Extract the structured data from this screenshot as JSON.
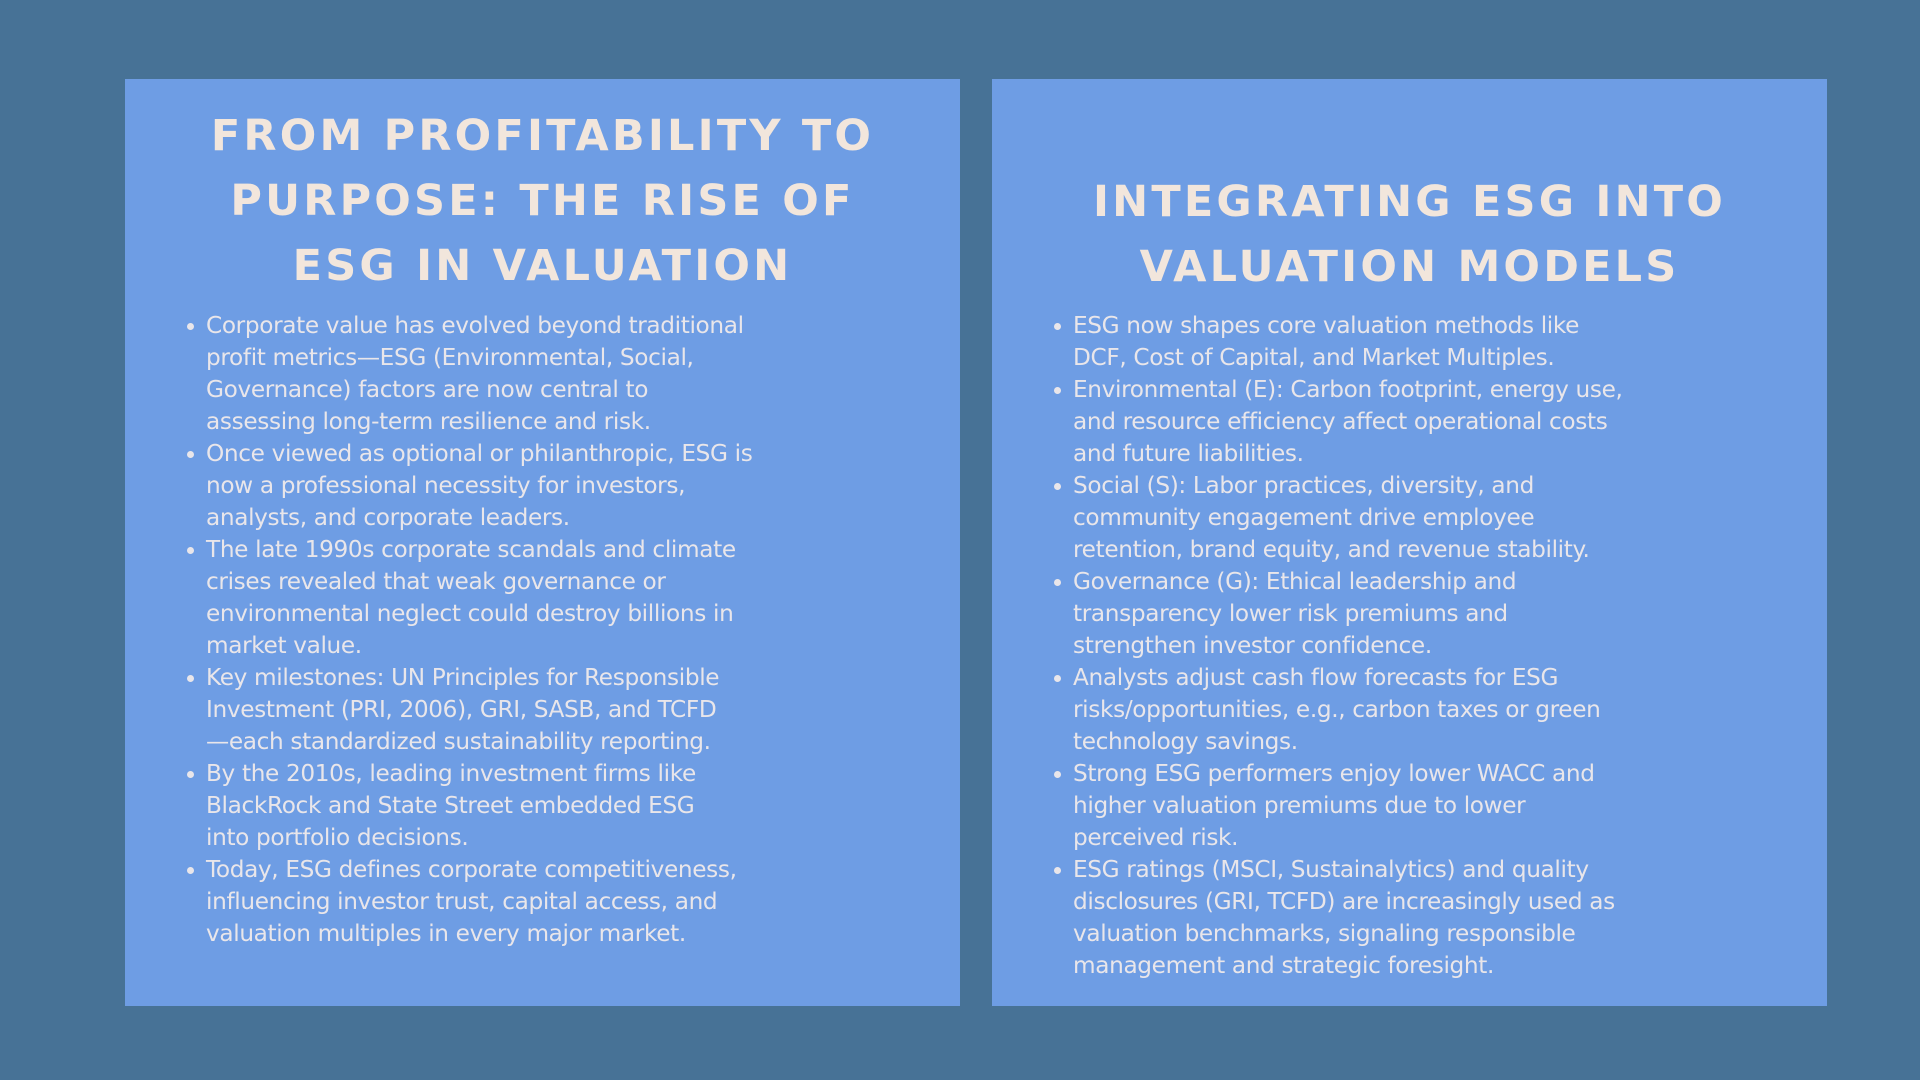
{
  "colors": {
    "background": "#477296",
    "panel": "#6E9DE4",
    "title_text": "#F2E6DC",
    "body_text": "#E9E6EA"
  },
  "left_panel": {
    "title_lines": [
      "FROM PROFITABILITY TO",
      "PURPOSE: THE RISE OF",
      "ESG IN VALUATION"
    ],
    "items": [
      {
        "lines": [
          "Corporate value has evolved beyond traditional",
          "profit metrics—ESG (Environmental, Social,",
          "Governance) factors are now central to",
          "assessing long-term resilience and risk."
        ]
      },
      {
        "lines": [
          "Once viewed as optional or philanthropic, ESG is",
          "now a professional necessity for investors,",
          "analysts, and corporate leaders."
        ]
      },
      {
        "lines": [
          "The late 1990s corporate scandals and climate",
          "crises revealed that weak governance or",
          "environmental neglect could destroy billions in",
          "market value."
        ]
      },
      {
        "lines": [
          "Key milestones: UN Principles for Responsible",
          "Investment (PRI, 2006), GRI, SASB, and TCFD",
          "—each standardized sustainability reporting."
        ]
      },
      {
        "lines": [
          "By the 2010s, leading investment firms like",
          "BlackRock and State Street embedded ESG",
          "into portfolio decisions."
        ]
      },
      {
        "lines": [
          "Today, ESG defines corporate competitiveness,",
          "influencing investor trust, capital access, and",
          "valuation multiples in every major market."
        ]
      }
    ]
  },
  "right_panel": {
    "title_lines": [
      "INTEGRATING ESG INTO",
      "VALUATION MODELS"
    ],
    "items": [
      {
        "lines": [
          "ESG now shapes core valuation methods like",
          "DCF, Cost of Capital, and Market Multiples."
        ]
      },
      {
        "lines": [
          "Environmental (E): Carbon footprint, energy use,",
          "and resource efficiency affect operational costs",
          "and future liabilities."
        ]
      },
      {
        "lines": [
          "Social (S): Labor practices, diversity, and",
          "community engagement drive employee",
          "retention, brand equity, and revenue stability."
        ]
      },
      {
        "lines": [
          "Governance (G): Ethical leadership and",
          "transparency lower risk premiums and",
          "strengthen investor confidence."
        ]
      },
      {
        "lines": [
          "Analysts adjust cash flow forecasts for ESG",
          "risks/opportunities, e.g., carbon taxes or green",
          "technology savings."
        ]
      },
      {
        "lines": [
          "Strong ESG performers enjoy lower WACC and",
          "higher valuation premiums due to lower",
          "perceived risk."
        ]
      },
      {
        "lines": [
          "ESG ratings (MSCI, Sustainalytics) and quality",
          "disclosures (GRI, TCFD) are increasingly used as",
          "valuation benchmarks, signaling responsible",
          "management and strategic foresight."
        ]
      }
    ]
  }
}
